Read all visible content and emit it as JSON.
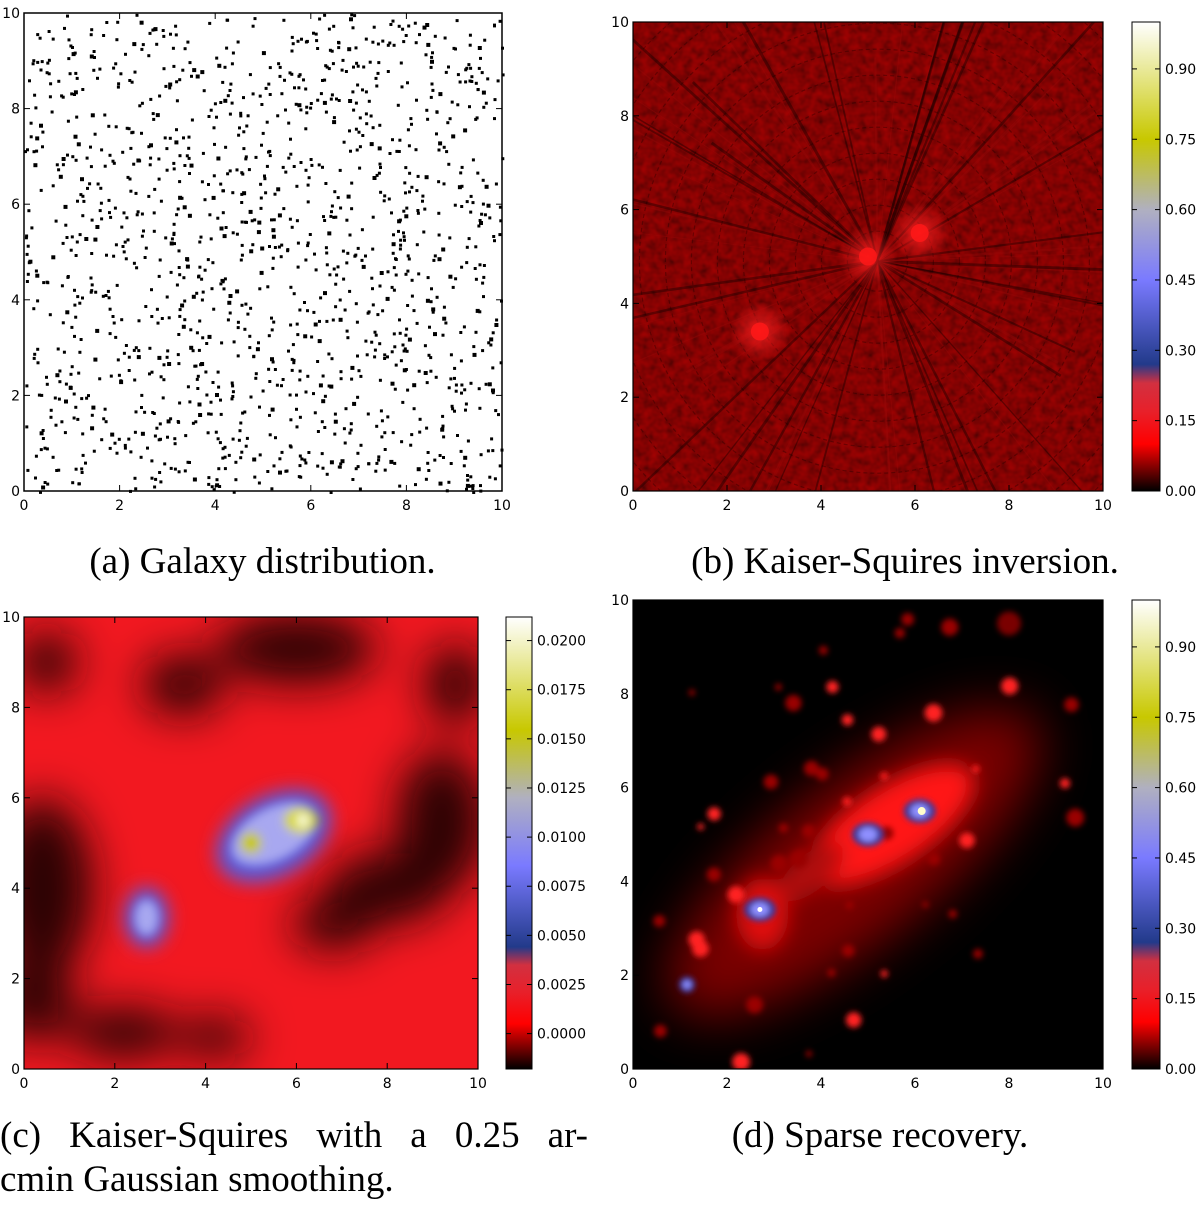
{
  "figure": {
    "colormap": [
      "#000000",
      "#ff0000",
      "#ff1f2a",
      "#223a8a",
      "#3838a8",
      "#7a7aff",
      "#b0b0c0",
      "#c8c800",
      "#ffffff"
    ],
    "panels": [
      {
        "id": "a",
        "caption": "(a) Galaxy distribution.",
        "chart_data": {
          "type": "scatter",
          "title": "Galaxy distribution",
          "xlim": [
            0,
            10
          ],
          "ylim": [
            0,
            10
          ],
          "xticks": [
            "0",
            "2",
            "4",
            "6",
            "8",
            "10"
          ],
          "yticks": [
            "0",
            "2",
            "4",
            "6",
            "8",
            "10"
          ],
          "marker_color": "#000000",
          "approx_count": 1400,
          "distribution": "uniform-random"
        }
      },
      {
        "id": "b",
        "caption": "(b) Kaiser-Squires inversion.",
        "chart_data": {
          "type": "heatmap",
          "title": "Kaiser-Squires inversion",
          "xlim": [
            0,
            10
          ],
          "ylim": [
            0,
            10
          ],
          "xticks": [
            "0",
            "2",
            "4",
            "6",
            "8",
            "10"
          ],
          "yticks": [
            "0",
            "2",
            "4",
            "6",
            "8",
            "10"
          ],
          "colorbar_ticks": [
            "0.00",
            "0.15",
            "0.30",
            "0.45",
            "0.60",
            "0.75",
            "0.90"
          ],
          "colorbar_range": [
            0.0,
            1.0
          ],
          "peaks": [
            {
              "x": 5.0,
              "y": 5.0
            },
            {
              "x": 6.1,
              "y": 5.5
            },
            {
              "x": 2.7,
              "y": 3.4
            }
          ]
        }
      },
      {
        "id": "c",
        "caption": "(c) Kaiser-Squires with a 0.25 arcmin Gaussian smoothing.",
        "caption_lines": [
          "(c) Kaiser-Squires with a 0.25 ar-",
          "cmin Gaussian smoothing."
        ],
        "chart_data": {
          "type": "heatmap",
          "title": "Kaiser-Squires with a 0.25 arcmin Gaussian smoothing",
          "xlim": [
            0,
            10
          ],
          "ylim": [
            0,
            10
          ],
          "xticks": [
            "0",
            "2",
            "4",
            "6",
            "8",
            "10"
          ],
          "yticks": [
            "0",
            "2",
            "4",
            "6",
            "8",
            "10"
          ],
          "colorbar_ticks": [
            "0.0000",
            "0.0025",
            "0.0050",
            "0.0075",
            "0.0100",
            "0.0125",
            "0.0150",
            "0.0175",
            "0.0200"
          ],
          "colorbar_range": [
            -0.0018,
            0.0212
          ],
          "peaks": [
            {
              "x": 5.0,
              "y": 5.0
            },
            {
              "x": 6.1,
              "y": 5.5
            },
            {
              "x": 2.7,
              "y": 3.4
            }
          ]
        }
      },
      {
        "id": "d",
        "caption": "(d) Sparse recovery.",
        "chart_data": {
          "type": "heatmap",
          "title": "Sparse recovery",
          "xlim": [
            0,
            10
          ],
          "ylim": [
            0,
            10
          ],
          "xticks": [
            "0",
            "2",
            "4",
            "6",
            "8",
            "10"
          ],
          "yticks": [
            "0",
            "2",
            "4",
            "6",
            "8",
            "10"
          ],
          "colorbar_ticks": [
            "0.00",
            "0.15",
            "0.30",
            "0.45",
            "0.60",
            "0.75",
            "0.90"
          ],
          "colorbar_range": [
            0.0,
            1.0
          ],
          "peaks": [
            {
              "x": 5.0,
              "y": 5.0
            },
            {
              "x": 6.1,
              "y": 5.5
            },
            {
              "x": 2.7,
              "y": 3.4
            },
            {
              "x": 1.15,
              "y": 1.8
            }
          ]
        }
      }
    ]
  }
}
